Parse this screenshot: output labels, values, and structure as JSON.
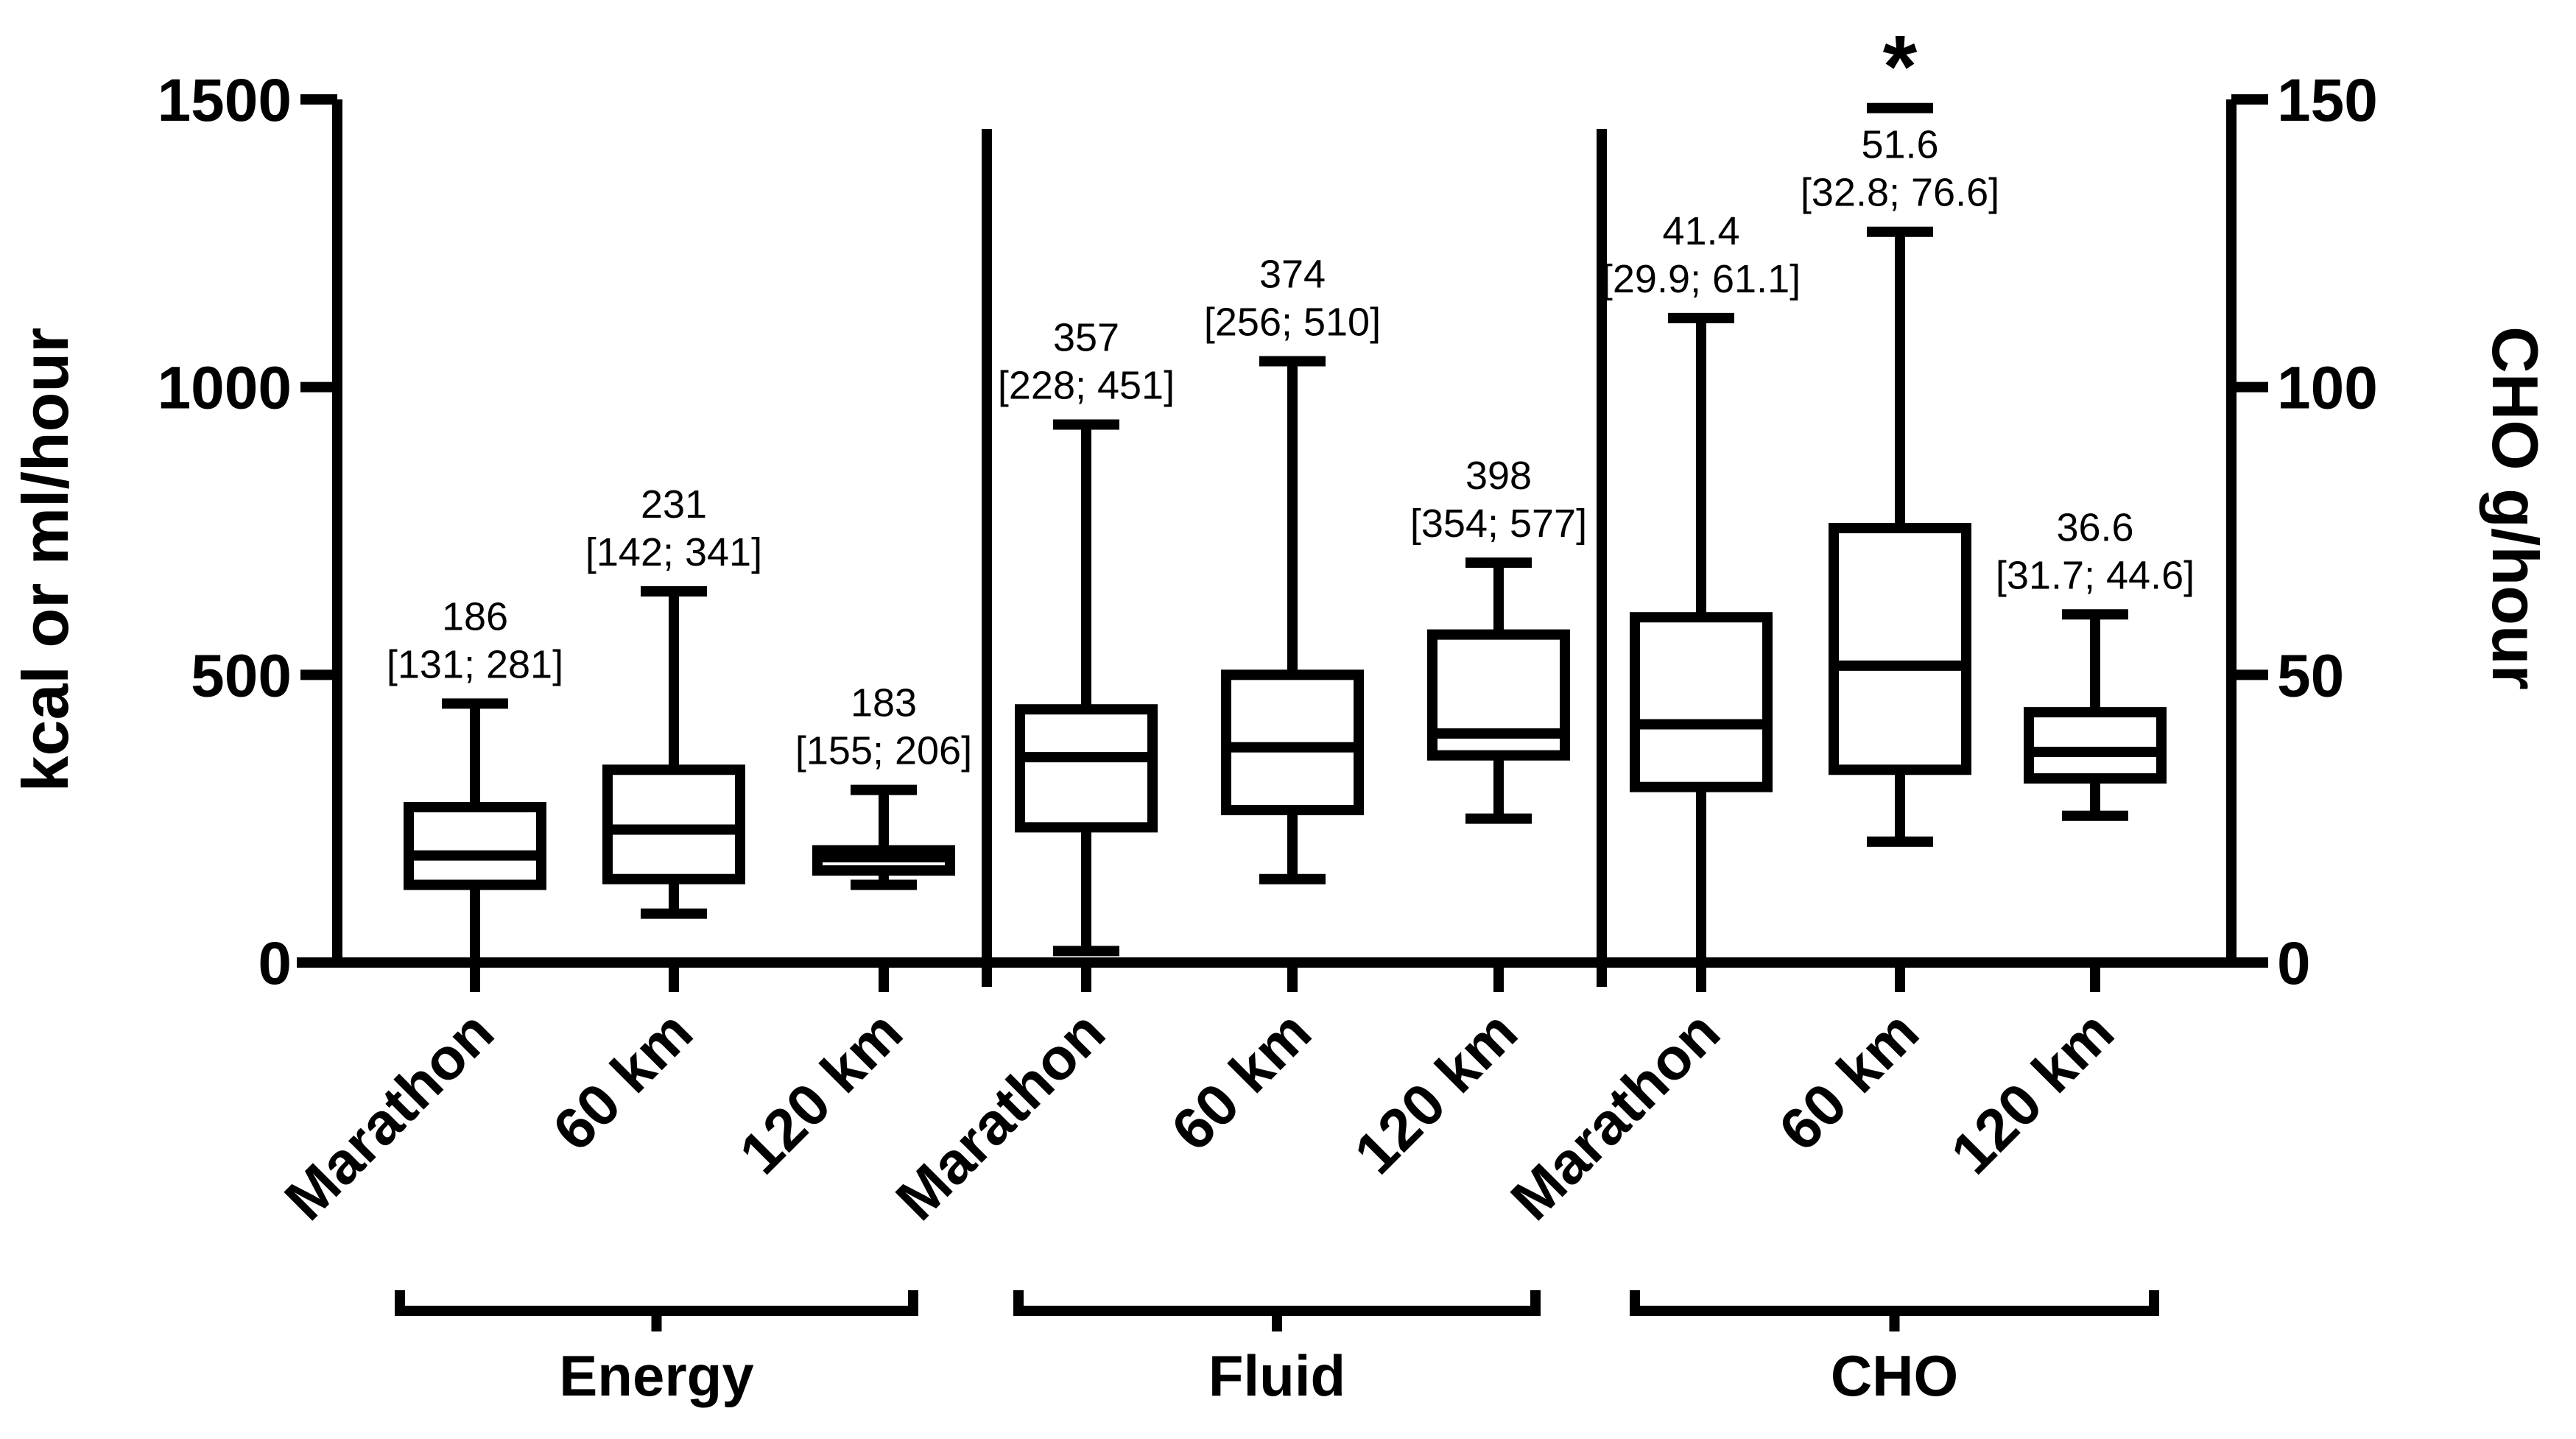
{
  "chart_data": {
    "type": "box",
    "title": "",
    "ylabel_left": "kcal or ml/hour",
    "ylabel_right": "CHO g/hour",
    "ylim_left": [
      0,
      1500
    ],
    "yticks_left": [
      0,
      500,
      1000,
      1500
    ],
    "ylim_right": [
      0,
      150
    ],
    "yticks_right": [
      0,
      50,
      100,
      150
    ],
    "grid": false,
    "groups": [
      {
        "name": "Energy",
        "axis": "left",
        "boxes": [
          {
            "category": "Marathon",
            "min": 0,
            "q1": 135,
            "median": 186,
            "q3": 270,
            "max": 450,
            "annotation_median": "186",
            "annotation_iqr": "[131; 281]"
          },
          {
            "category": "60 km",
            "min": 85,
            "q1": 145,
            "median": 231,
            "q3": 335,
            "max": 645,
            "annotation_median": "231",
            "annotation_iqr": "[142; 341]"
          },
          {
            "category": "120 km",
            "min": 135,
            "q1": 160,
            "median": 183,
            "q3": 195,
            "max": 300,
            "annotation_median": "183",
            "annotation_iqr": "[155; 206]"
          }
        ]
      },
      {
        "name": "Fluid",
        "axis": "left",
        "boxes": [
          {
            "category": "Marathon",
            "min": 20,
            "q1": 235,
            "median": 357,
            "q3": 440,
            "max": 935,
            "annotation_median": "357",
            "annotation_iqr": "[228; 451]"
          },
          {
            "category": "60 km",
            "min": 145,
            "q1": 265,
            "median": 374,
            "q3": 500,
            "max": 1045,
            "annotation_median": "374",
            "annotation_iqr": "[256; 510]"
          },
          {
            "category": "120 km",
            "min": 250,
            "q1": 360,
            "median": 398,
            "q3": 570,
            "max": 695,
            "annotation_median": "398",
            "annotation_iqr": "[354; 577]"
          }
        ]
      },
      {
        "name": "CHO",
        "axis": "right",
        "boxes": [
          {
            "category": "Marathon",
            "min": 0,
            "q1": 30.5,
            "median": 41.4,
            "q3": 60,
            "max": 112,
            "annotation_median": "41.4",
            "annotation_iqr": "[29.9; 61.1]"
          },
          {
            "category": "60 km",
            "min": 21,
            "q1": 33.5,
            "median": 51.6,
            "q3": 75.5,
            "max": 127,
            "outlier": 148.5,
            "annotation_median": "51.6",
            "annotation_iqr": "[32.8; 76.6]"
          },
          {
            "category": "120 km",
            "min": 25.5,
            "q1": 32,
            "median": 36.6,
            "q3": 43.5,
            "max": 60.5,
            "annotation_median": "36.6",
            "annotation_iqr": "[31.7; 44.6]"
          }
        ]
      }
    ],
    "significance_marker": {
      "group": "CHO",
      "category": "60 km",
      "symbol": "*"
    }
  }
}
